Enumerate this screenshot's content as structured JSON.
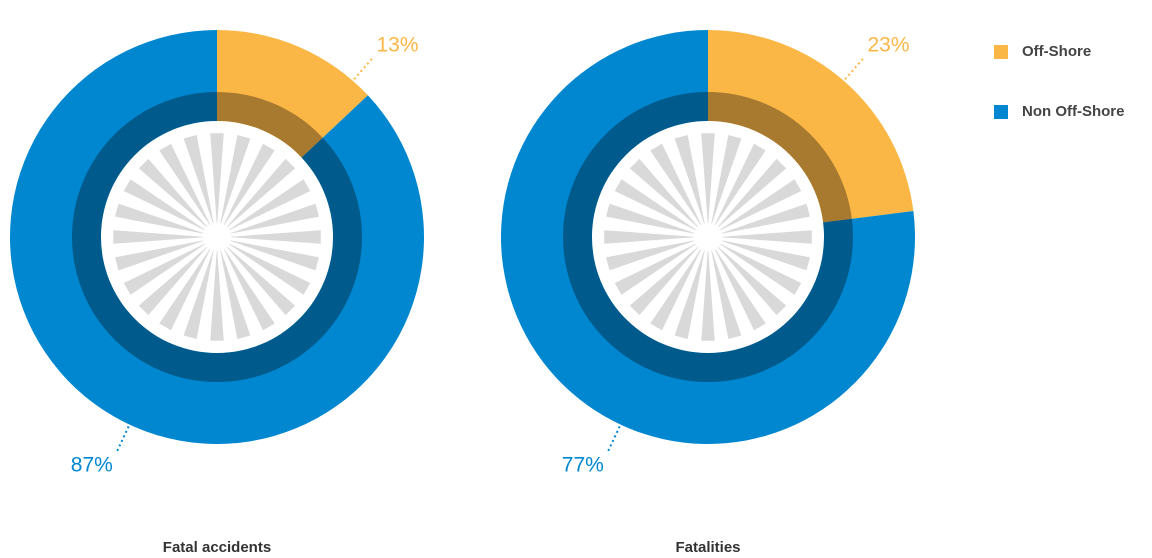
{
  "chart_data": [
    {
      "type": "pie",
      "title": "Fatal accidents",
      "categories": [
        "Off-Shore",
        "Non Off-Shore"
      ],
      "values": [
        13,
        87
      ],
      "value_labels": [
        "13%",
        "87%"
      ],
      "colors": [
        "#fbb746",
        "#0087d0"
      ]
    },
    {
      "type": "pie",
      "title": "Fatalities",
      "categories": [
        "Off-Shore",
        "Non Off-Shore"
      ],
      "values": [
        23,
        77
      ],
      "value_labels": [
        "23%",
        "77%"
      ],
      "colors": [
        "#fbb746",
        "#0087d0"
      ]
    }
  ]
}
